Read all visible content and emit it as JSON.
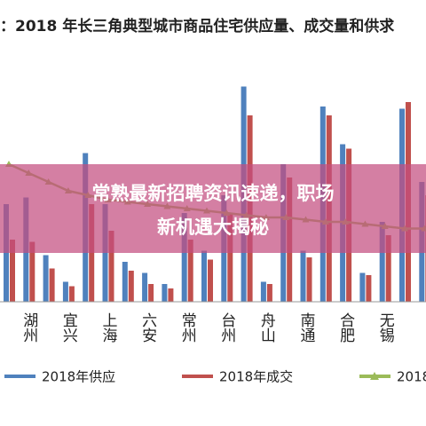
{
  "chart_data": {
    "type": "bar",
    "title": "：2018 年长三角典型城市商品住宅供应量、成交量和供求",
    "categories": [
      null,
      "湖州",
      null,
      "宜兴",
      null,
      "上海",
      null,
      "六安",
      null,
      "常州",
      null,
      "台州",
      null,
      "舟山",
      null,
      "南通",
      null,
      "合肥",
      null,
      "无锡",
      null,
      null
    ],
    "series": [
      {
        "name": "2018年供应",
        "color": "#4f81bd",
        "values": [
          44,
          47,
          21,
          9,
          67,
          44,
          18,
          13,
          8,
          40,
          23,
          48,
          97,
          9,
          62,
          23,
          88,
          71,
          13,
          36,
          87,
          54
        ]
      },
      {
        "name": "2018年成交",
        "color": "#c0504d",
        "values": [
          28,
          27,
          15,
          7,
          44,
          32,
          14,
          8,
          6,
          28,
          19,
          40,
          84,
          8,
          56,
          20,
          84,
          69,
          12,
          30,
          90,
          48
        ]
      },
      {
        "name": "2018",
        "color": "#9bbb59",
        "type": "line",
        "axis": "y2",
        "values": [
          62,
          58,
          54,
          50,
          48,
          46,
          45,
          44,
          43,
          42,
          41,
          40,
          39,
          38,
          38,
          37,
          36,
          36,
          35,
          34,
          33,
          33
        ]
      }
    ],
    "ylim": [
      0,
      100
    ],
    "y2lim": [
      0,
      100
    ],
    "grid": false,
    "legend": "bottom"
  },
  "overlay": {
    "lines": [
      "常熟最新招聘资讯速递，职场",
      "新机遇大揭秘"
    ]
  }
}
